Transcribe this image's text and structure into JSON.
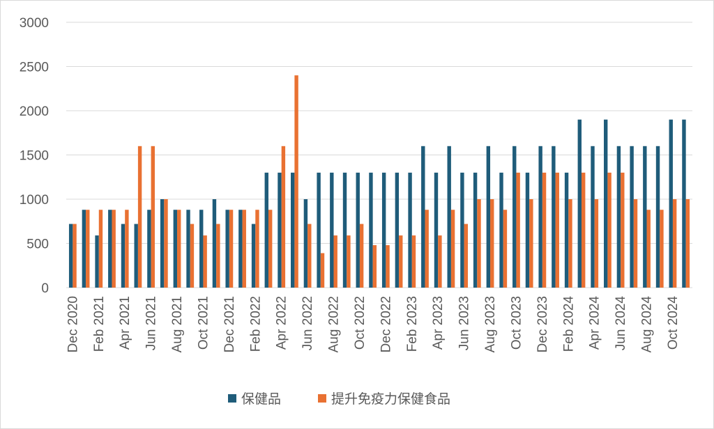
{
  "chart_data": {
    "type": "bar",
    "title": "",
    "xlabel": "",
    "ylabel": "",
    "ylim": [
      0,
      3000
    ],
    "yticks": [
      0,
      500,
      1000,
      1500,
      2000,
      2500,
      3000
    ],
    "grid": true,
    "legend_position": "bottom",
    "categories": [
      "Dec 2020",
      "Jan 2021",
      "Feb 2021",
      "Mar 2021",
      "Apr 2021",
      "May 2021",
      "Jun 2021",
      "Jul 2021",
      "Aug 2021",
      "Sep 2021",
      "Oct 2021",
      "Nov 2021",
      "Dec 2021",
      "Jan 2022",
      "Feb 2022",
      "Mar 2022",
      "Apr 2022",
      "May 2022",
      "Jun 2022",
      "Jul 2022",
      "Aug 2022",
      "Sep 2022",
      "Oct 2022",
      "Nov 2022",
      "Dec 2022",
      "Jan 2023",
      "Feb 2023",
      "Mar 2023",
      "Apr 2023",
      "May 2023",
      "Jun 2023",
      "Jul 2023",
      "Aug 2023",
      "Sep 2023",
      "Oct 2023",
      "Nov 2023",
      "Dec 2023",
      "Jan 2024",
      "Feb 2024",
      "Mar 2024",
      "Apr 2024",
      "May 2024",
      "Jun 2024",
      "Jul 2024",
      "Aug 2024",
      "Sep 2024",
      "Oct 2024",
      "Nov 2024"
    ],
    "shown_tick_labels": [
      "Dec 2020",
      "",
      "Feb 2021",
      "",
      "Apr 2021",
      "",
      "Jun 2021",
      "",
      "Aug 2021",
      "",
      "Oct 2021",
      "",
      "Dec 2021",
      "",
      "Feb 2022",
      "",
      "Apr 2022",
      "",
      "Jun 2022",
      "",
      "Aug 2022",
      "",
      "Oct 2022",
      "",
      "Dec 2022",
      "",
      "Feb 2023",
      "",
      "Apr 2023",
      "",
      "Jun 2023",
      "",
      "Aug 2023",
      "",
      "Oct 2023",
      "",
      "Dec 2023",
      "",
      "Feb 2024",
      "",
      "Apr 2024",
      "",
      "Jun 2024",
      "",
      "Aug 2024",
      "",
      "Oct 2024",
      ""
    ],
    "series": [
      {
        "name": "保健品",
        "color": "#1f5c7a",
        "values": [
          720,
          880,
          590,
          880,
          720,
          720,
          880,
          1000,
          880,
          880,
          880,
          1000,
          880,
          880,
          720,
          1300,
          1300,
          1300,
          1000,
          1300,
          1300,
          1300,
          1300,
          1300,
          1300,
          1300,
          1300,
          1600,
          1300,
          1600,
          1300,
          1300,
          1600,
          1300,
          1600,
          1300,
          1600,
          1600,
          1300,
          1900,
          1600,
          1900,
          1600,
          1600,
          1600,
          1600,
          1900,
          1900
        ]
      },
      {
        "name": "提升免疫力保健食品",
        "color": "#e97132",
        "values": [
          720,
          880,
          880,
          880,
          880,
          1600,
          1600,
          1000,
          880,
          720,
          590,
          720,
          880,
          880,
          880,
          880,
          1600,
          2400,
          720,
          390,
          590,
          590,
          720,
          480,
          480,
          590,
          590,
          880,
          590,
          880,
          720,
          1000,
          1000,
          880,
          1300,
          1000,
          1300,
          1300,
          1000,
          1300,
          1000,
          1300,
          1300,
          1000,
          880,
          880,
          1000,
          1000
        ]
      }
    ]
  }
}
